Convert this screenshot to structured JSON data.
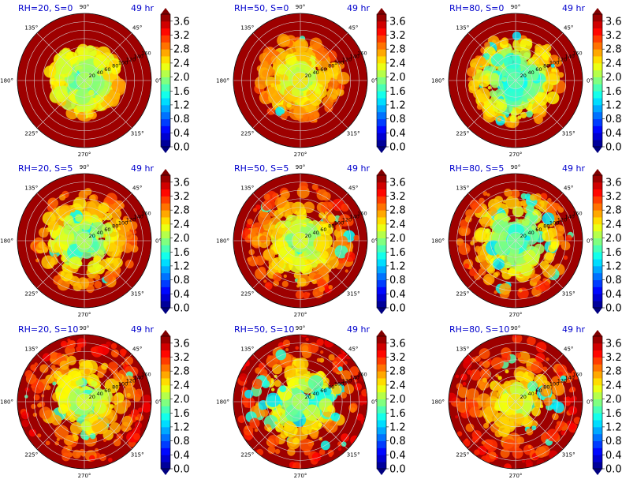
{
  "figure": {
    "time_label": "49 hr",
    "angle_labels": [
      "90°",
      "45°",
      "0°",
      "315°",
      "270°",
      "225°",
      "180°",
      "135°"
    ],
    "colorbar_ticks": [
      "0.0",
      "0.4",
      "0.8",
      "1.2",
      "1.6",
      "2.0",
      "2.4",
      "2.8",
      "3.2",
      "3.6"
    ],
    "title_color": "#0000cc"
  },
  "chart_data": [
    {
      "type": "heatmap",
      "projection": "polar",
      "title": "RH=20, S=0",
      "radial_ticks": [
        "20",
        "40",
        "60",
        "80",
        "100",
        "120",
        "140",
        "160"
      ],
      "clim": [
        0.0,
        3.8
      ],
      "colormap": "jet"
    },
    {
      "type": "heatmap",
      "projection": "polar",
      "title": "RH=50, S=0",
      "radial_ticks": [
        "20",
        "40",
        "60",
        "80",
        "100",
        "120",
        "140",
        "160"
      ],
      "clim": [
        0.0,
        3.8
      ],
      "colormap": "jet"
    },
    {
      "type": "heatmap",
      "projection": "polar",
      "title": "RH=80, S=0",
      "radial_ticks": [
        "20",
        "40",
        "60",
        "80",
        "100",
        "120",
        "140",
        "160"
      ],
      "clim": [
        0.0,
        3.8
      ],
      "colormap": "jet"
    },
    {
      "type": "heatmap",
      "projection": "polar",
      "title": "RH=20, S=5",
      "radial_ticks": [
        "20",
        "40",
        "60",
        "80",
        "100",
        "120",
        "140",
        "160"
      ],
      "clim": [
        0.0,
        3.8
      ],
      "colormap": "jet"
    },
    {
      "type": "heatmap",
      "projection": "polar",
      "title": "RH=50, S=5",
      "radial_ticks": [
        "20",
        "40",
        "60",
        "80",
        "100",
        "120",
        "140",
        "160"
      ],
      "clim": [
        0.0,
        3.8
      ],
      "colormap": "jet"
    },
    {
      "type": "heatmap",
      "projection": "polar",
      "title": "RH=80, S=5",
      "radial_ticks": [
        "20",
        "40",
        "60",
        "80",
        "100",
        "120",
        "140",
        "160"
      ],
      "clim": [
        0.0,
        3.8
      ],
      "colormap": "jet"
    },
    {
      "type": "heatmap",
      "projection": "polar",
      "title": "RH=20, S=10",
      "radial_ticks": [
        "20",
        "40",
        "60",
        "80",
        "100",
        "120",
        "140",
        "160"
      ],
      "clim": [
        0.0,
        3.8
      ],
      "colormap": "jet"
    },
    {
      "type": "heatmap",
      "projection": "polar",
      "title": "RH=50, S=10",
      "radial_ticks": [
        "20",
        "40",
        "60",
        "80",
        "100",
        "120",
        "140",
        "160"
      ],
      "clim": [
        0.0,
        3.8
      ],
      "colormap": "jet"
    },
    {
      "type": "heatmap",
      "projection": "polar",
      "title": "RH=80, S=10",
      "radial_ticks": [
        "20",
        "40",
        "60",
        "80",
        "100",
        "120",
        "140",
        "160"
      ],
      "clim": [
        0.0,
        3.8
      ],
      "colormap": "jet"
    }
  ]
}
